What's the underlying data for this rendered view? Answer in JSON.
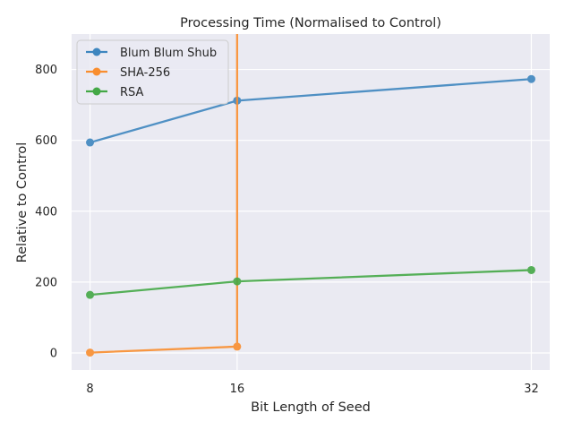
{
  "chart_data": {
    "type": "line",
    "title": "Processing Time (Normalised to Control)",
    "xlabel": "Bit Length of Seed",
    "ylabel": "Relative to Control",
    "x_ticks": [
      8,
      16,
      32
    ],
    "y_ticks": [
      0,
      200,
      400,
      600,
      800
    ],
    "xlim": [
      7,
      33
    ],
    "ylim": [
      -48,
      900
    ],
    "grid": true,
    "legend_position": "top-left",
    "series": [
      {
        "name": "Blum Blum Shub",
        "color": "#3e86bf",
        "points": [
          [
            8,
            594
          ],
          [
            16,
            712
          ],
          [
            32,
            773
          ]
        ]
      },
      {
        "name": "SHA-256",
        "color": "#f98e2f",
        "points": [
          [
            8,
            1
          ],
          [
            16,
            18
          ],
          [
            16,
            900
          ]
        ]
      },
      {
        "name": "RSA",
        "color": "#44a846",
        "points": [
          [
            8,
            164
          ],
          [
            16,
            202
          ],
          [
            32,
            234
          ]
        ]
      }
    ]
  }
}
